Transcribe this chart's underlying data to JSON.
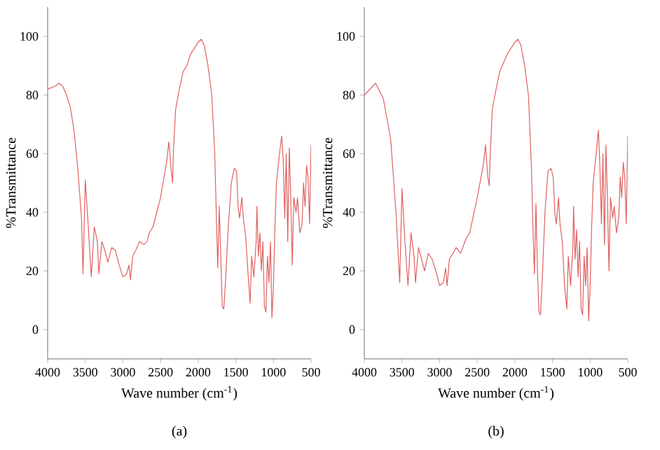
{
  "chart_data": [
    {
      "type": "line",
      "title": "(a)",
      "xlabel": "Wave number (cm$^{-1}$)",
      "ylabel": "%Transmittance",
      "xlim": [
        4000,
        500
      ],
      "ylim": [
        -10,
        110
      ],
      "xticks": [
        4000,
        3500,
        3000,
        2500,
        2000,
        1500,
        1000,
        500
      ],
      "yticks": [
        0,
        20,
        40,
        60,
        80,
        100
      ],
      "grid": false,
      "legend": false,
      "marker": "none",
      "line_style": "solid",
      "series": [
        {
          "color": "#e06060",
          "x": [
            4000,
            3900,
            3850,
            3800,
            3750,
            3700,
            3650,
            3600,
            3550,
            3530,
            3500,
            3460,
            3420,
            3380,
            3340,
            3320,
            3280,
            3240,
            3200,
            3150,
            3100,
            3050,
            3000,
            2950,
            2920,
            2900,
            2870,
            2830,
            2780,
            2720,
            2680,
            2650,
            2600,
            2500,
            2420,
            2390,
            2360,
            2340,
            2330,
            2300,
            2250,
            2200,
            2150,
            2100,
            2050,
            2000,
            1960,
            1920,
            1870,
            1820,
            1780,
            1760,
            1740,
            1720,
            1700,
            1680,
            1660,
            1640,
            1600,
            1560,
            1520,
            1490,
            1470,
            1450,
            1420,
            1400,
            1370,
            1340,
            1310,
            1290,
            1260,
            1230,
            1220,
            1200,
            1180,
            1160,
            1140,
            1120,
            1100,
            1080,
            1060,
            1040,
            1020,
            1000,
            980,
            960,
            920,
            890,
            870,
            850,
            830,
            810,
            790,
            770,
            750,
            730,
            700,
            680,
            650,
            620,
            600,
            580,
            560,
            540,
            520,
            500
          ],
          "values": [
            82,
            83,
            84,
            83,
            80,
            76,
            68,
            55,
            38,
            19,
            51,
            35,
            18,
            35,
            30,
            19,
            30,
            27,
            23,
            28,
            27,
            22,
            18,
            19,
            22,
            17,
            25,
            27,
            30,
            29,
            30,
            33,
            35,
            45,
            57,
            64,
            55,
            50,
            60,
            75,
            82,
            88,
            90,
            94,
            96,
            98,
            99,
            97,
            90,
            80,
            60,
            40,
            21,
            42,
            25,
            8,
            7,
            15,
            35,
            50,
            55,
            54,
            42,
            38,
            45,
            38,
            32,
            20,
            9,
            25,
            18,
            30,
            42,
            25,
            33,
            20,
            30,
            8,
            6,
            25,
            16,
            30,
            4,
            15,
            35,
            50,
            60,
            66,
            58,
            38,
            60,
            30,
            62,
            45,
            22,
            45,
            40,
            45,
            33,
            36,
            50,
            42,
            56,
            52,
            36,
            63
          ]
        }
      ]
    },
    {
      "type": "line",
      "title": "(b)",
      "xlabel": "Wave number (cm$^{-1}$)",
      "ylabel": "%Transmittance",
      "xlim": [
        4000,
        500
      ],
      "ylim": [
        -10,
        110
      ],
      "xticks": [
        4000,
        3500,
        3000,
        2500,
        2000,
        1500,
        1000,
        500
      ],
      "yticks": [
        0,
        20,
        40,
        60,
        80,
        100
      ],
      "grid": false,
      "legend": false,
      "marker": "none",
      "line_style": "solid",
      "series": [
        {
          "color": "#e06060",
          "x": [
            4000,
            3850,
            3750,
            3650,
            3580,
            3530,
            3500,
            3460,
            3420,
            3380,
            3340,
            3320,
            3280,
            3240,
            3200,
            3150,
            3100,
            3050,
            3000,
            2950,
            2920,
            2900,
            2870,
            2820,
            2780,
            2720,
            2650,
            2600,
            2500,
            2420,
            2390,
            2360,
            2340,
            2330,
            2300,
            2250,
            2200,
            2100,
            2000,
            1960,
            1920,
            1870,
            1820,
            1780,
            1760,
            1740,
            1720,
            1700,
            1680,
            1660,
            1640,
            1600,
            1560,
            1520,
            1490,
            1470,
            1450,
            1420,
            1400,
            1370,
            1340,
            1310,
            1290,
            1260,
            1230,
            1220,
            1200,
            1180,
            1160,
            1140,
            1120,
            1100,
            1080,
            1060,
            1040,
            1020,
            1000,
            980,
            960,
            920,
            890,
            870,
            850,
            830,
            810,
            790,
            770,
            750,
            730,
            700,
            680,
            650,
            620,
            600,
            580,
            560,
            540,
            520,
            500
          ],
          "values": [
            80,
            84,
            79,
            65,
            40,
            16,
            48,
            30,
            15,
            33,
            25,
            16,
            28,
            24,
            20,
            26,
            24,
            20,
            15,
            16,
            21,
            15,
            24,
            26,
            28,
            26,
            31,
            33,
            45,
            56,
            63,
            52,
            49,
            58,
            75,
            82,
            88,
            94,
            98,
            99,
            97,
            90,
            80,
            55,
            35,
            19,
            43,
            20,
            6,
            5,
            15,
            40,
            54,
            55,
            52,
            40,
            36,
            45,
            36,
            30,
            15,
            7,
            25,
            15,
            28,
            42,
            24,
            34,
            18,
            30,
            7,
            5,
            25,
            15,
            28,
            3,
            15,
            35,
            50,
            60,
            68,
            55,
            36,
            60,
            29,
            63,
            45,
            20,
            45,
            38,
            42,
            33,
            38,
            52,
            45,
            57,
            52,
            36,
            66
          ]
        }
      ]
    }
  ]
}
